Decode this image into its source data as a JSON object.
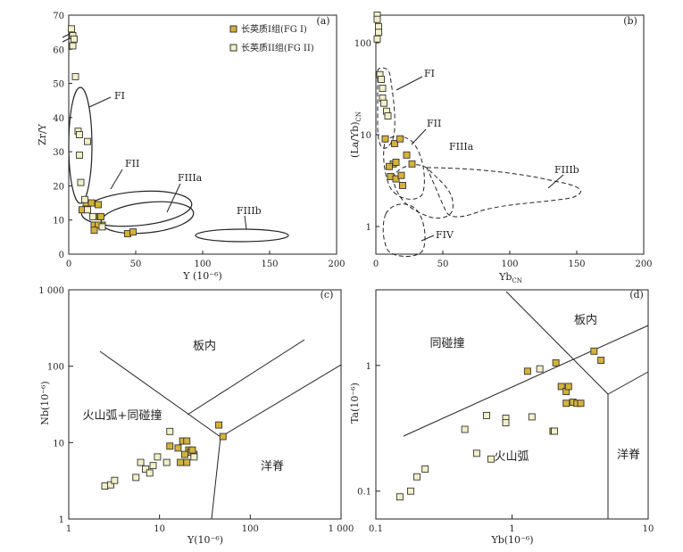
{
  "colors": {
    "fg1": "#d4b23a",
    "fg2": "#f3f0c8",
    "stroke": "#333333",
    "line": "#222222"
  },
  "chart_data": [
    {
      "panel": "(a)",
      "type": "scatter",
      "xlabel": "Y (10⁻⁶)",
      "ylabel": "Zr/Y",
      "xlim": [
        0,
        200
      ],
      "ylim": [
        0,
        70
      ],
      "xticks": [
        0,
        50,
        100,
        150,
        200
      ],
      "yticks": [
        0,
        10,
        20,
        30,
        40,
        50,
        60,
        70
      ],
      "legend": [
        {
          "label": "长英质I组(FG I)",
          "group": "fg1"
        },
        {
          "label": "长英质II组(FG II)",
          "group": "fg2"
        }
      ],
      "series": [
        {
          "name": "长英质I组(FG I)",
          "group": "fg1",
          "points": [
            [
              13,
              15
            ],
            [
              17,
              15
            ],
            [
              10,
              13
            ],
            [
              22,
              14.5
            ],
            [
              23,
              11
            ],
            [
              25,
              8.5
            ],
            [
              24,
              11
            ],
            [
              19,
              8.5
            ],
            [
              22,
              8.5
            ],
            [
              19,
              7
            ],
            [
              44,
              6
            ],
            [
              48,
              6.5
            ]
          ]
        },
        {
          "name": "长英质II组(FG II)",
          "group": "fg2",
          "points": [
            [
              2,
              66
            ],
            [
              3,
              64
            ],
            [
              4,
              63
            ],
            [
              3,
              61
            ],
            [
              5,
              52
            ],
            [
              7,
              36
            ],
            [
              8,
              35
            ],
            [
              8,
              29
            ],
            [
              14,
              33
            ],
            [
              9,
              21
            ],
            [
              12,
              16
            ],
            [
              14,
              13
            ],
            [
              18,
              11
            ],
            [
              25,
              8
            ]
          ]
        }
      ],
      "fields": [
        {
          "label": "FI"
        },
        {
          "label": "FII"
        },
        {
          "label": "FIIIa"
        },
        {
          "label": "FIIIb"
        }
      ]
    },
    {
      "panel": "(b)",
      "type": "scatter",
      "xlabel": "Yb_CN",
      "ylabel": "(La/Yb)_CN",
      "xlim": [
        0,
        200
      ],
      "ylim_log": [
        0.5,
        200
      ],
      "xticks": [
        0,
        50,
        100,
        150,
        200
      ],
      "yticks": [
        1,
        10,
        100
      ],
      "series": [
        {
          "name": "长英质I组(FG I)",
          "group": "fg1",
          "points": [
            [
              7,
              9
            ],
            [
              14,
              8
            ],
            [
              18,
              9
            ],
            [
              23,
              6
            ],
            [
              27,
              4.8
            ],
            [
              13,
              4.8
            ],
            [
              15,
              5
            ],
            [
              10,
              4.5
            ],
            [
              11,
              3.5
            ],
            [
              15,
              3.3
            ],
            [
              19,
              3.6
            ],
            [
              20,
              2.8
            ]
          ]
        },
        {
          "name": "长英质II组(FG II)",
          "group": "fg2",
          "points": [
            [
              1,
              200
            ],
            [
              1,
              180
            ],
            [
              2,
              150
            ],
            [
              2,
              130
            ],
            [
              1,
              110
            ],
            [
              3,
              45
            ],
            [
              4,
              40
            ],
            [
              5,
              32
            ],
            [
              5,
              25
            ],
            [
              6,
              22
            ],
            [
              8,
              18
            ],
            [
              9,
              16
            ]
          ]
        }
      ],
      "fields": [
        {
          "label": "FI"
        },
        {
          "label": "FII"
        },
        {
          "label": "FIIIa"
        },
        {
          "label": "FIIIb"
        },
        {
          "label": "FIV"
        }
      ]
    },
    {
      "panel": "(c)",
      "type": "scatter",
      "xlabel": "Y(10⁻⁶)",
      "ylabel": "Nb(10⁻⁶)",
      "xlim_log": [
        1,
        1000
      ],
      "ylim_log": [
        1,
        1000
      ],
      "xtick_labels": [
        "1",
        "10",
        "100",
        "1 000"
      ],
      "ytick_labels": [
        "1",
        "10",
        "100",
        "1 000"
      ],
      "fields": [
        {
          "label": "板内"
        },
        {
          "label": "火山弧+同碰撞"
        },
        {
          "label": "洋脊"
        }
      ],
      "series": [
        {
          "name": "长英质I组(FG I)",
          "group": "fg1",
          "points": [
            [
              13,
              9
            ],
            [
              16,
              8.5
            ],
            [
              18,
              10.5
            ],
            [
              20,
              10.5
            ],
            [
              21,
              8
            ],
            [
              22,
              7.5
            ],
            [
              24,
              7
            ],
            [
              23,
              8
            ],
            [
              19,
              7
            ],
            [
              20,
              5.5
            ],
            [
              17,
              5.5
            ],
            [
              45,
              17
            ],
            [
              50,
              12
            ]
          ]
        },
        {
          "name": "长英质II组(FG II)",
          "group": "fg2",
          "points": [
            [
              2.5,
              2.7
            ],
            [
              2.9,
              2.8
            ],
            [
              3.2,
              3.2
            ],
            [
              5.5,
              3.5
            ],
            [
              6.2,
              5.5
            ],
            [
              7,
              4.5
            ],
            [
              7.8,
              4
            ],
            [
              8.5,
              5
            ],
            [
              9.5,
              6.5
            ],
            [
              12,
              5.5
            ],
            [
              13,
              14
            ],
            [
              24,
              6.5
            ]
          ]
        }
      ]
    },
    {
      "panel": "(d)",
      "type": "scatter",
      "xlabel": "Yb(10⁻⁶)",
      "ylabel": "Ta(10⁻⁶)",
      "xlim_log": [
        0.1,
        10
      ],
      "ylim_log": [
        0.06,
        4
      ],
      "xtick_labels": [
        "0.1",
        "1",
        "10"
      ],
      "ytick_labels": [
        "0.1",
        "1"
      ],
      "fields": [
        {
          "label": "板内"
        },
        {
          "label": "同碰撞"
        },
        {
          "label": "火山弧"
        },
        {
          "label": "洋脊"
        }
      ],
      "series": [
        {
          "name": "长英质I组(FG I)",
          "group": "fg1",
          "points": [
            [
              1.3,
              0.9
            ],
            [
              2.1,
              1.05
            ],
            [
              2.3,
              0.68
            ],
            [
              2.5,
              0.62
            ],
            [
              2.6,
              0.68
            ],
            [
              2.5,
              0.5
            ],
            [
              2.8,
              0.51
            ],
            [
              3,
              0.5
            ],
            [
              3.2,
              0.5
            ],
            [
              2,
              0.3
            ],
            [
              4,
              1.3
            ],
            [
              4.5,
              1.1
            ]
          ]
        },
        {
          "name": "长英质II组(FG II)",
          "group": "fg2",
          "points": [
            [
              0.15,
              0.09
            ],
            [
              0.18,
              0.1
            ],
            [
              0.2,
              0.13
            ],
            [
              0.23,
              0.15
            ],
            [
              0.45,
              0.31
            ],
            [
              0.55,
              0.2
            ],
            [
              0.65,
              0.4
            ],
            [
              0.7,
              0.18
            ],
            [
              0.9,
              0.38
            ],
            [
              0.9,
              0.35
            ],
            [
              1.4,
              0.39
            ],
            [
              1.6,
              0.94
            ],
            [
              2.05,
              0.3
            ]
          ]
        }
      ]
    }
  ]
}
